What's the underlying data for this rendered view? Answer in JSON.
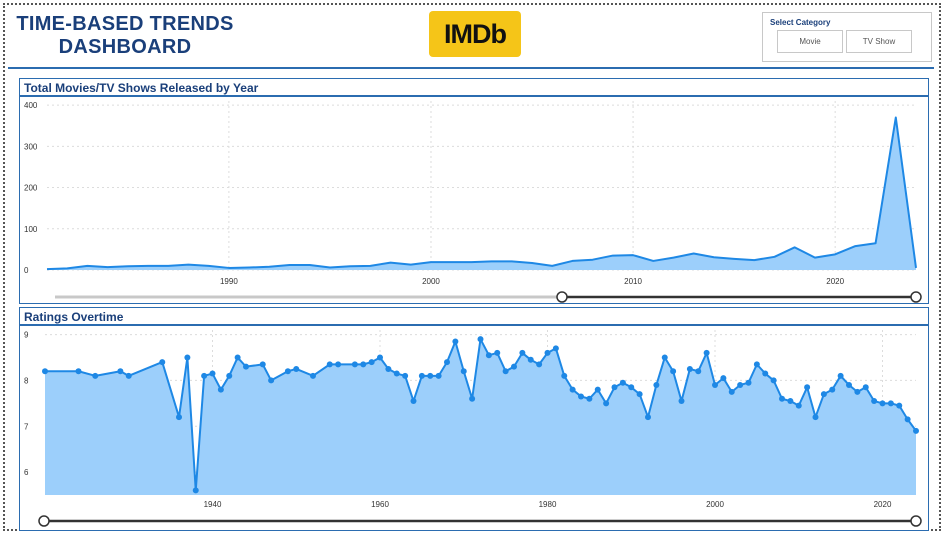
{
  "header": {
    "title_line1": "TIME-BASED TRENDS",
    "title_line2": "DASHBOARD",
    "logo_text": "IMDb"
  },
  "category_filter": {
    "label": "Select Category",
    "options": [
      "Movie",
      "TV Show"
    ]
  },
  "colors": {
    "accent": "#2b6cb0",
    "line": "#1e88e5",
    "fill": "#9ccffb",
    "logo": "#f5c518"
  },
  "chart_data": [
    {
      "type": "area",
      "title": "Total Movies/TV Shows Released by Year",
      "x": [
        1981,
        1982,
        1983,
        1984,
        1985,
        1986,
        1987,
        1988,
        1989,
        1990,
        1991,
        1992,
        1993,
        1994,
        1995,
        1996,
        1997,
        1998,
        1999,
        2000,
        2001,
        2002,
        2003,
        2004,
        2005,
        2006,
        2007,
        2008,
        2009,
        2010,
        2011,
        2012,
        2013,
        2014,
        2015,
        2016,
        2017,
        2018,
        2019,
        2020,
        2021,
        2022,
        2023,
        2024
      ],
      "y": [
        2,
        4,
        10,
        7,
        9,
        10,
        10,
        13,
        10,
        5,
        6,
        8,
        12,
        12,
        6,
        9,
        10,
        18,
        13,
        19,
        19,
        19,
        21,
        21,
        17,
        10,
        22,
        25,
        35,
        36,
        22,
        30,
        40,
        31,
        27,
        24,
        32,
        55,
        30,
        38,
        58,
        65,
        370,
        5
      ],
      "ylim": [
        0,
        410
      ],
      "yticks": [
        0,
        100,
        200,
        300,
        400
      ],
      "xticks": [
        1990,
        2000,
        2010,
        2020
      ],
      "grid": true
    },
    {
      "type": "area",
      "title": "Ratings Overtime",
      "x": [
        1920,
        1924,
        1926,
        1929,
        1930,
        1934,
        1936,
        1937,
        1938,
        1939,
        1940,
        1941,
        1942,
        1943,
        1944,
        1946,
        1947,
        1949,
        1950,
        1952,
        1954,
        1955,
        1957,
        1958,
        1959,
        1960,
        1961,
        1962,
        1963,
        1964,
        1965,
        1966,
        1967,
        1968,
        1969,
        1970,
        1971,
        1972,
        1973,
        1974,
        1975,
        1976,
        1977,
        1978,
        1979,
        1980,
        1981,
        1982,
        1983,
        1984,
        1985,
        1986,
        1987,
        1988,
        1989,
        1990,
        1991,
        1992,
        1993,
        1994,
        1995,
        1996,
        1997,
        1998,
        1999,
        2000,
        2001,
        2002,
        2003,
        2004,
        2005,
        2006,
        2007,
        2008,
        2009,
        2010,
        2011,
        2012,
        2013,
        2014,
        2015,
        2016,
        2017,
        2018,
        2019,
        2020,
        2021,
        2022,
        2023,
        2024
      ],
      "y": [
        8.2,
        8.2,
        8.1,
        8.2,
        8.1,
        8.4,
        7.2,
        8.5,
        5.6,
        8.1,
        8.15,
        7.8,
        8.1,
        8.5,
        8.3,
        8.35,
        8.0,
        8.2,
        8.25,
        8.1,
        8.35,
        8.35,
        8.35,
        8.35,
        8.4,
        8.5,
        8.25,
        8.15,
        8.1,
        7.55,
        8.1,
        8.1,
        8.1,
        8.4,
        8.85,
        8.2,
        7.6,
        8.9,
        8.55,
        8.6,
        8.2,
        8.3,
        8.6,
        8.45,
        8.35,
        8.6,
        8.7,
        8.1,
        7.8,
        7.65,
        7.6,
        7.8,
        7.5,
        7.85,
        7.95,
        7.85,
        7.7,
        7.2,
        7.9,
        8.5,
        8.2,
        7.55,
        8.25,
        8.2,
        8.6,
        7.9,
        8.05,
        7.75,
        7.9,
        7.95,
        8.35,
        8.15,
        8.0,
        7.6,
        7.55,
        7.45,
        7.85,
        7.2,
        7.7,
        7.8,
        8.1,
        7.9,
        7.75,
        7.85,
        7.55,
        7.5,
        7.5,
        7.45,
        7.15,
        6.9
      ],
      "ylim": [
        5.5,
        9.1
      ],
      "yticks": [
        6,
        7,
        8,
        9
      ],
      "xticks": [
        1940,
        1960,
        1980,
        2000,
        2020
      ],
      "grid": true
    }
  ]
}
